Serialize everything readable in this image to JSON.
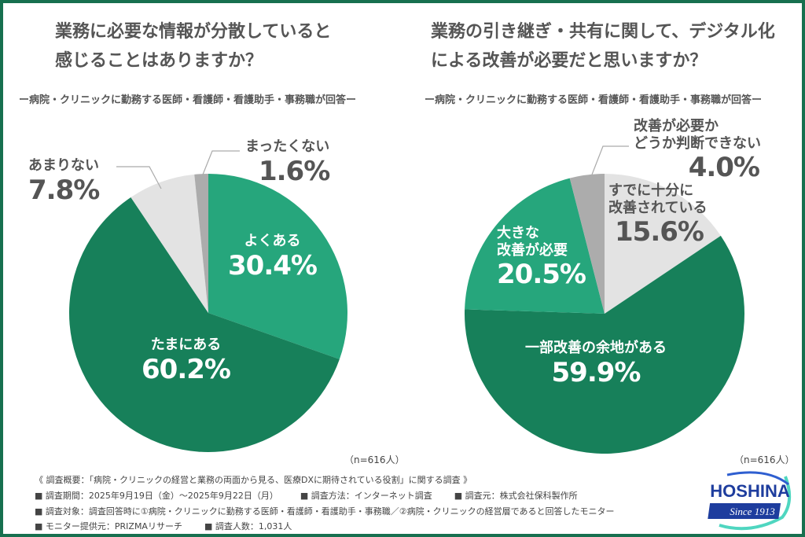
{
  "colors": {
    "dark_green": "#17805a",
    "teal": "#26a67c",
    "light_gray": "#e3e3e3",
    "gray": "#acacac",
    "frame": "#17704f"
  },
  "chart_data": [
    {
      "type": "pie",
      "title": "業務に必要な情報が分散していると感じることはありますか？",
      "subtitle": "ー病院・クリニックに勤務する医師・看護師・看護助手・事務職が回答ー",
      "sample": "（n=616人）",
      "slices": [
        {
          "label": "よくある",
          "value": 30.4,
          "display": "30.4%",
          "color": "#26a67c"
        },
        {
          "label": "たまにある",
          "value": 60.2,
          "display": "60.2%",
          "color": "#17805a"
        },
        {
          "label": "あまりない",
          "value": 7.8,
          "display": "7.8%",
          "color": "#e3e3e3"
        },
        {
          "label": "まったくない",
          "value": 1.6,
          "display": "1.6%",
          "color": "#acacac"
        }
      ]
    },
    {
      "type": "pie",
      "title": "業務の引き継ぎ・共有に関して、デジタル化による改善が必要だと思いますか？",
      "subtitle": "ー病院・クリニックに勤務する医師・看護師・看護助手・事務職が回答ー",
      "sample": "（n=616人）",
      "slices": [
        {
          "label": "すでに十分に改善されている",
          "label_lines": [
            "すでに十分に",
            "改善されている"
          ],
          "value": 15.6,
          "display": "15.6%",
          "color": "#e3e3e3"
        },
        {
          "label": "一部改善の余地がある",
          "label_lines": [
            "一部改善の余地がある"
          ],
          "value": 59.9,
          "display": "59.9%",
          "color": "#17805a"
        },
        {
          "label": "大きな改善が必要",
          "label_lines": [
            "大きな",
            "改善が必要"
          ],
          "value": 20.5,
          "display": "20.5%",
          "color": "#26a67c"
        },
        {
          "label": "改善が必要かどうか判断できない",
          "label_lines": [
            "改善が必要か",
            "どうか判断できない"
          ],
          "value": 4.0,
          "display": "4.0%",
          "color": "#acacac"
        }
      ]
    }
  ],
  "titles": {
    "left": [
      "業務に必要な情報が分散していると",
      "感じることはありますか？"
    ],
    "right": [
      "業務の引き継ぎ・共有に関して、デジタル化",
      "による改善が必要だと思いますか？"
    ]
  },
  "footer": {
    "overview": "《 調査概要：「病院・クリニックの経営と業務の両面から見る、医療DXに期待されている役割」に関する調査 》",
    "period": "■ 調査期間：2025年9月19日（金）〜2025年9月22日（月）",
    "method": "■ 調査方法：インターネット調査",
    "org": "■ 調査元：株式会社保科製作所",
    "target": "■ 調査対象：調査回答時に①病院・クリニックに勤務する医師・看護師・看護助手・事務職／②病院・クリニックの経営層であると回答したモニター",
    "provider": "■ モニター提供元：PRIZMAリサーチ",
    "count": "■ 調査人数：1,031人"
  },
  "logo": {
    "name": "HOSHINA",
    "since": "Since 1913"
  }
}
